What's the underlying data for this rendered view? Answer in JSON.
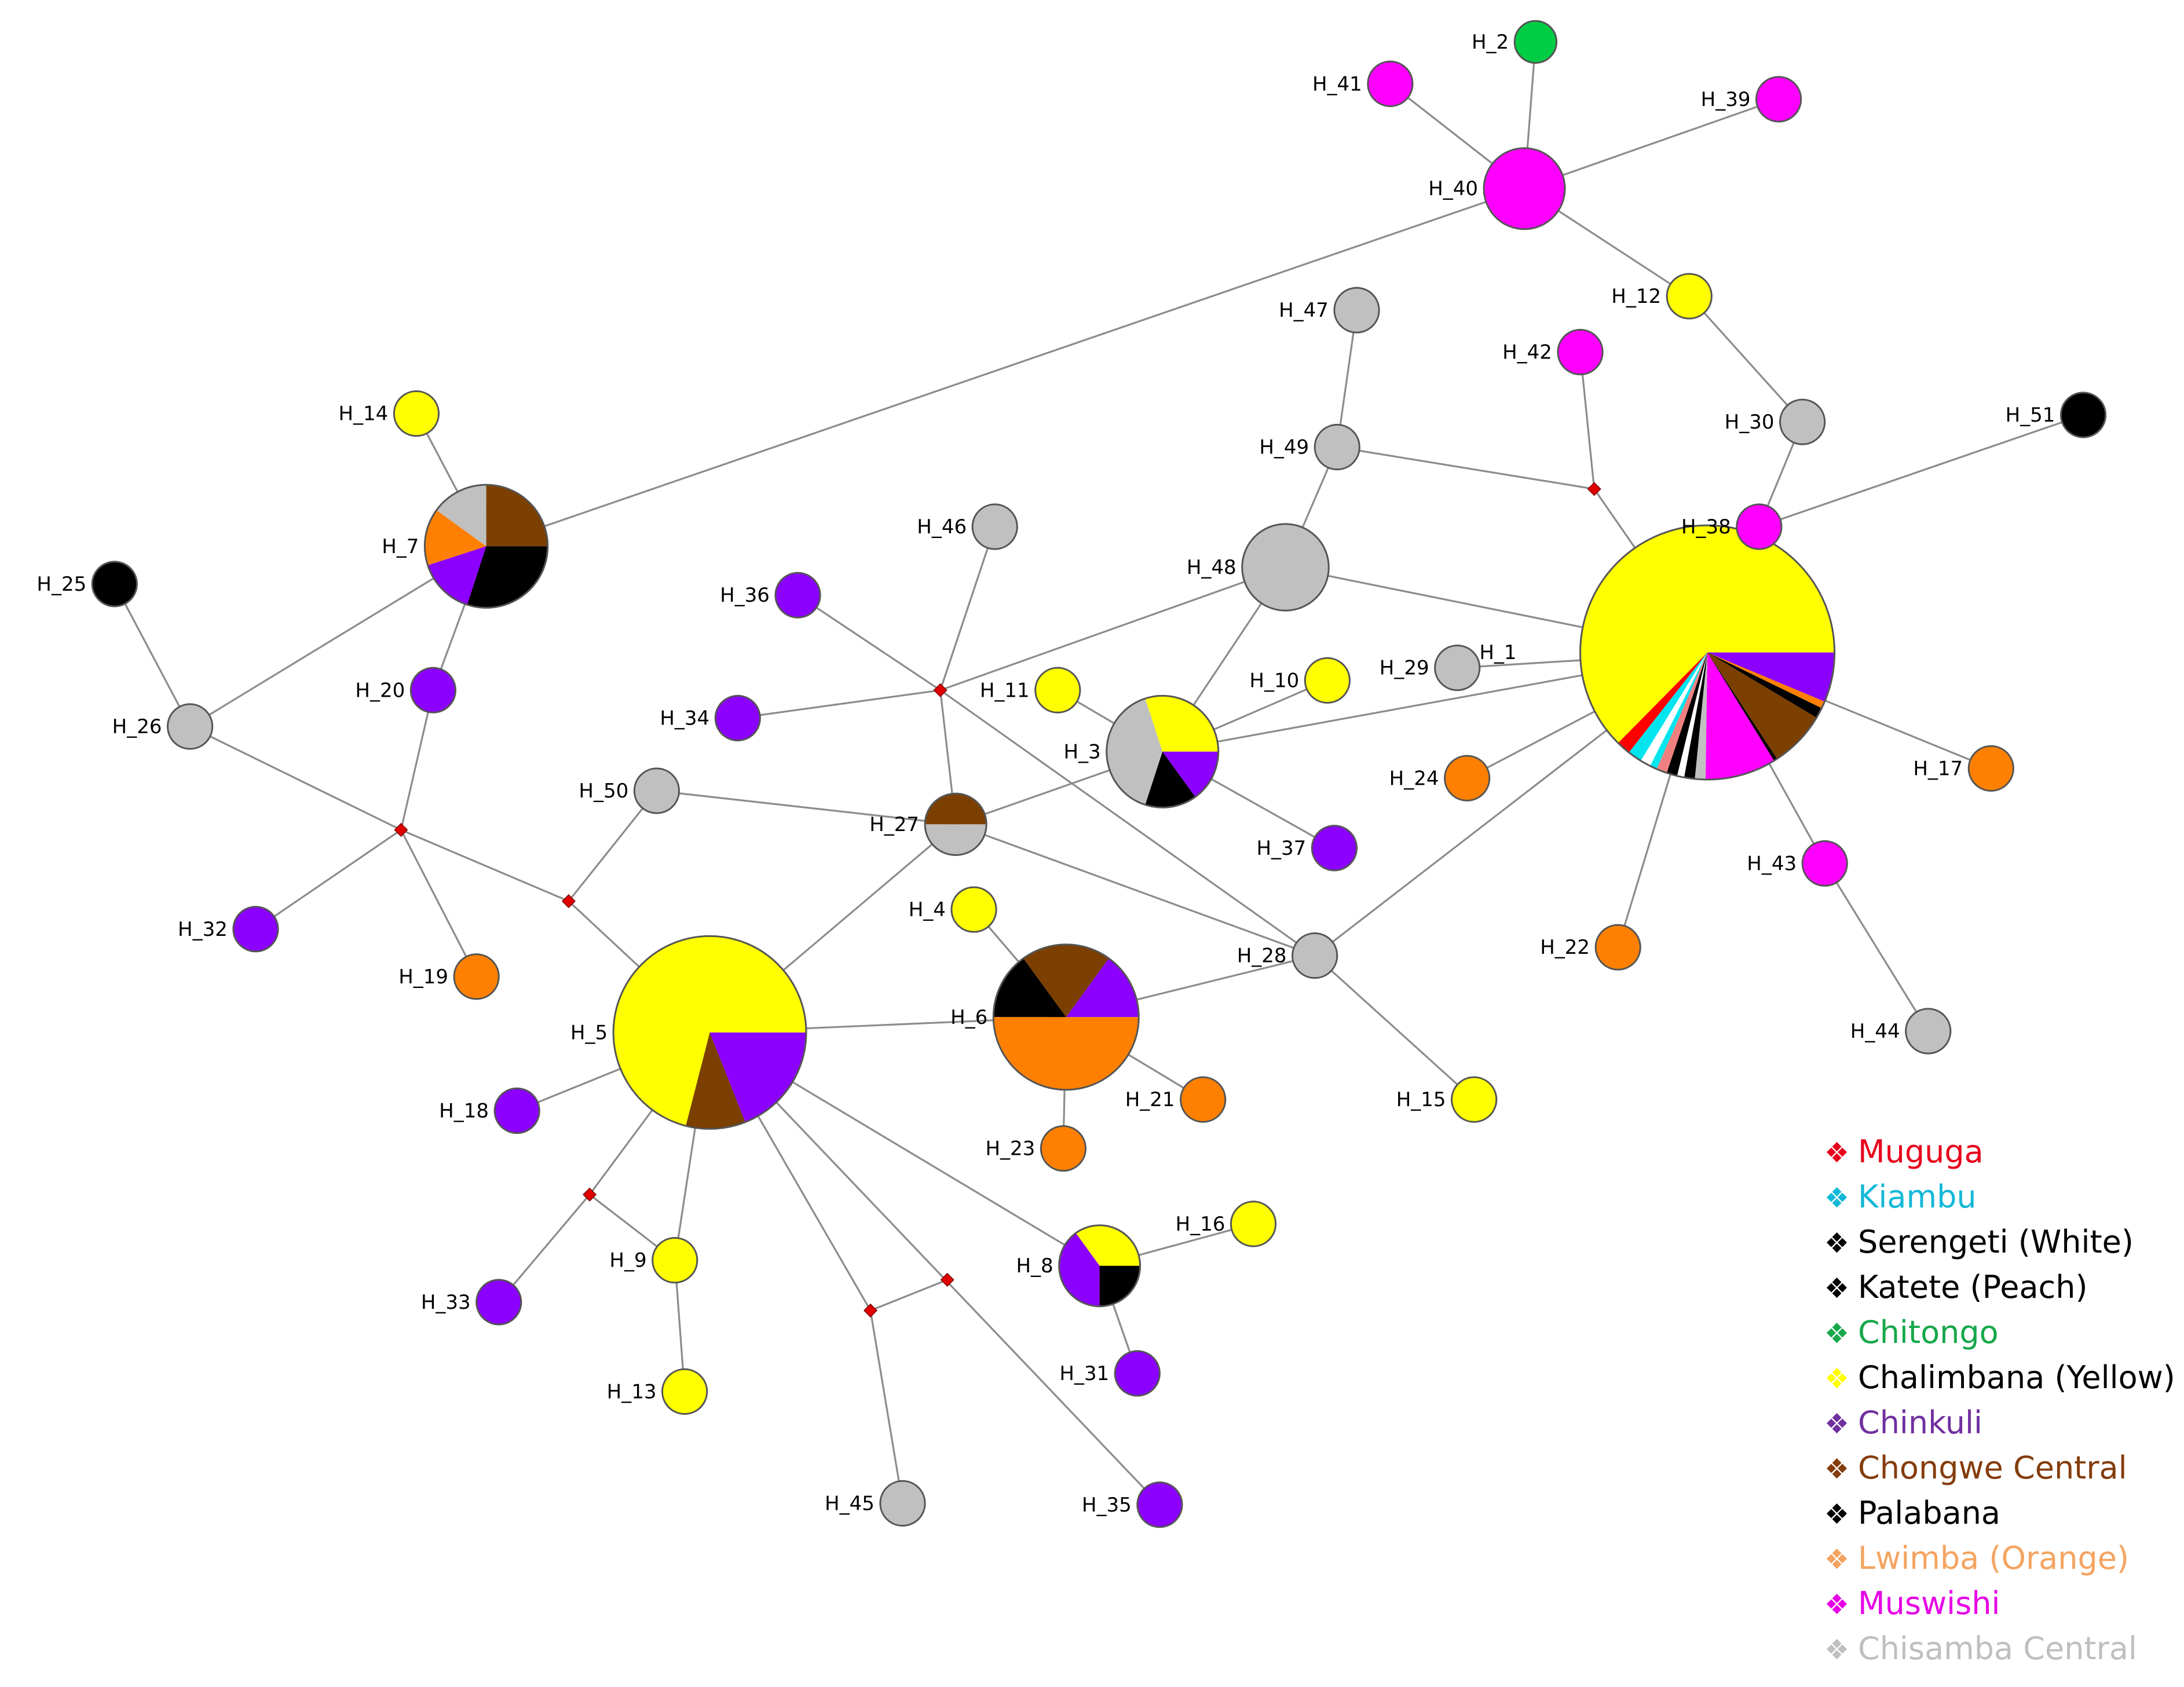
{
  "nodes": [
    {
      "id": "H_1",
      "label": "H_1",
      "slices": [
        [
          "#ffff00",
          0.695
        ],
        [
          "#ff0000",
          0.02
        ],
        [
          "#00e5ee",
          0.02
        ],
        [
          "#ffffff",
          0.015
        ],
        [
          "#00e5ee",
          0.01
        ],
        [
          "#f08080",
          0.015
        ],
        [
          "#000000",
          0.015
        ],
        [
          "#ffffff",
          0.01
        ],
        [
          "#000000",
          0.015
        ],
        [
          "#c0c0c0",
          0.015
        ],
        [
          "#ff00ff",
          0.1
        ],
        [
          "#000000",
          0.005
        ],
        [
          "#7b3f00",
          0.08
        ],
        [
          "#000000",
          0.015
        ],
        [
          "#ff8000",
          0.01
        ],
        [
          "#8b00ff",
          0.07
        ]
      ]
    },
    {
      "id": "H_2",
      "label": "H_2",
      "slices": [
        [
          "#00cc44",
          1
        ]
      ]
    },
    {
      "id": "H_3",
      "label": "H_3",
      "slices": [
        [
          "#ffff00",
          0.3
        ],
        [
          "#c0c0c0",
          0.4
        ],
        [
          "#000000",
          0.15
        ],
        [
          "#8b00ff",
          0.15
        ]
      ]
    },
    {
      "id": "H_4",
      "label": "H_4",
      "slices": [
        [
          "#ffff00",
          1
        ]
      ]
    },
    {
      "id": "H_5",
      "label": "H_5",
      "slices": [
        [
          "#ffff00",
          0.71
        ],
        [
          "#7b3f00",
          0.1
        ],
        [
          "#8b00ff",
          0.19
        ]
      ]
    },
    {
      "id": "H_6",
      "label": "H_6",
      "slices": [
        [
          "#8b00ff",
          0.15
        ],
        [
          "#7b3f00",
          0.2
        ],
        [
          "#000000",
          0.15
        ],
        [
          "#ff8000",
          0.5
        ]
      ]
    },
    {
      "id": "H_7",
      "label": "H_7",
      "slices": [
        [
          "#7b3f00",
          0.25
        ],
        [
          "#c0c0c0",
          0.15
        ],
        [
          "#ff8000",
          0.15
        ],
        [
          "#8b00ff",
          0.15
        ],
        [
          "#000000",
          0.3
        ]
      ]
    },
    {
      "id": "H_8",
      "label": "H_8",
      "slices": [
        [
          "#ffff00",
          0.35
        ],
        [
          "#8b00ff",
          0.4
        ],
        [
          "#000000",
          0.25
        ]
      ]
    },
    {
      "id": "H_9",
      "label": "H_9",
      "slices": [
        [
          "#ffff00",
          1
        ]
      ]
    },
    {
      "id": "H_10",
      "label": "H_10",
      "slices": [
        [
          "#ffff00",
          1
        ]
      ]
    },
    {
      "id": "H_11",
      "label": "H_11",
      "slices": [
        [
          "#ffff00",
          1
        ]
      ]
    },
    {
      "id": "H_12",
      "label": "H_12",
      "slices": [
        [
          "#ffff00",
          1
        ]
      ]
    },
    {
      "id": "H_13",
      "label": "H_13",
      "slices": [
        [
          "#ffff00",
          1
        ]
      ]
    },
    {
      "id": "H_14",
      "label": "H_14",
      "slices": [
        [
          "#ffff00",
          1
        ]
      ]
    },
    {
      "id": "H_15",
      "label": "H_15",
      "slices": [
        [
          "#ffff00",
          1
        ]
      ]
    },
    {
      "id": "H_16",
      "label": "H_16",
      "slices": [
        [
          "#ffff00",
          1
        ]
      ]
    },
    {
      "id": "H_17",
      "label": "H_17",
      "slices": [
        [
          "#ff8000",
          1
        ]
      ]
    },
    {
      "id": "H_18",
      "label": "H_18",
      "slices": [
        [
          "#8b00ff",
          1
        ]
      ]
    },
    {
      "id": "H_19",
      "label": "H_19",
      "slices": [
        [
          "#ff8000",
          1
        ]
      ]
    },
    {
      "id": "H_20",
      "label": "H_20",
      "slices": [
        [
          "#8b00ff",
          1
        ]
      ]
    },
    {
      "id": "H_21",
      "label": "H_21",
      "slices": [
        [
          "#ff8000",
          1
        ]
      ]
    },
    {
      "id": "H_22",
      "label": "H_22",
      "slices": [
        [
          "#ff8000",
          1
        ]
      ]
    },
    {
      "id": "H_23",
      "label": "H_23",
      "slices": [
        [
          "#ff8000",
          1
        ]
      ]
    },
    {
      "id": "H_24",
      "label": "H_24",
      "slices": [
        [
          "#ff8000",
          1
        ]
      ]
    },
    {
      "id": "H_25",
      "label": "H_25",
      "slices": [
        [
          "#000000",
          1
        ]
      ]
    },
    {
      "id": "H_26",
      "label": "H_26",
      "slices": [
        [
          "#c0c0c0",
          1
        ]
      ]
    },
    {
      "id": "H_27",
      "label": "H_27",
      "slices": [
        [
          "#7b3f00",
          0.5
        ],
        [
          "#c0c0c0",
          0.5
        ]
      ]
    },
    {
      "id": "H_28",
      "label": "H_28",
      "slices": [
        [
          "#c0c0c0",
          1
        ]
      ]
    },
    {
      "id": "H_29",
      "label": "H_29",
      "slices": [
        [
          "#c0c0c0",
          1
        ]
      ]
    },
    {
      "id": "H_30",
      "label": "H_30",
      "slices": [
        [
          "#c0c0c0",
          1
        ]
      ]
    },
    {
      "id": "H_31",
      "label": "H_31",
      "slices": [
        [
          "#8b00ff",
          1
        ]
      ]
    },
    {
      "id": "H_32",
      "label": "H_32",
      "slices": [
        [
          "#8b00ff",
          1
        ]
      ]
    },
    {
      "id": "H_33",
      "label": "H_33",
      "slices": [
        [
          "#8b00ff",
          1
        ]
      ]
    },
    {
      "id": "H_34",
      "label": "H_34",
      "slices": [
        [
          "#8b00ff",
          1
        ]
      ]
    },
    {
      "id": "H_35",
      "label": "H_35",
      "slices": [
        [
          "#8b00ff",
          1
        ]
      ]
    },
    {
      "id": "H_36",
      "label": "H_36",
      "slices": [
        [
          "#8b00ff",
          1
        ]
      ]
    },
    {
      "id": "H_37",
      "label": "H_37",
      "slices": [
        [
          "#8b00ff",
          1
        ]
      ]
    },
    {
      "id": "H_38",
      "label": "H_38",
      "slices": [
        [
          "#ff00ff",
          1
        ]
      ]
    },
    {
      "id": "H_39",
      "label": "H_39",
      "slices": [
        [
          "#ff00ff",
          1
        ]
      ]
    },
    {
      "id": "H_40",
      "label": "H_40",
      "slices": [
        [
          "#ff00ff",
          1
        ]
      ]
    },
    {
      "id": "H_41",
      "label": "H_41",
      "slices": [
        [
          "#ff00ff",
          1
        ]
      ]
    },
    {
      "id": "H_42",
      "label": "H_42",
      "slices": [
        [
          "#ff00ff",
          1
        ]
      ]
    },
    {
      "id": "H_43",
      "label": "H_43",
      "slices": [
        [
          "#ff00ff",
          1
        ]
      ]
    },
    {
      "id": "H_44",
      "label": "H_44",
      "slices": [
        [
          "#c0c0c0",
          1
        ]
      ]
    },
    {
      "id": "H_45",
      "label": "H_45",
      "slices": [
        [
          "#c0c0c0",
          1
        ]
      ]
    },
    {
      "id": "H_46",
      "label": "H_46",
      "slices": [
        [
          "#c0c0c0",
          1
        ]
      ]
    },
    {
      "id": "H_47",
      "label": "H_47",
      "slices": [
        [
          "#c0c0c0",
          1
        ]
      ]
    },
    {
      "id": "H_48",
      "label": "H_48",
      "slices": [
        [
          "#c0c0c0",
          1
        ]
      ]
    },
    {
      "id": "H_49",
      "label": "H_49",
      "slices": [
        [
          "#c0c0c0",
          1
        ]
      ]
    },
    {
      "id": "H_50",
      "label": "H_50",
      "slices": [
        [
          "#c0c0c0",
          1
        ]
      ]
    },
    {
      "id": "H_51",
      "label": "H_51",
      "slices": [
        [
          "#000000",
          1
        ]
      ]
    }
  ],
  "median_vectors": [
    "mv1",
    "mv2",
    "mv3",
    "mv4",
    "mv5",
    "mv6",
    "mv7"
  ],
  "edges": [
    [
      "H_40",
      "H_2"
    ],
    [
      "H_40",
      "H_41"
    ],
    [
      "H_40",
      "H_39"
    ],
    [
      "H_40",
      "H_12"
    ],
    [
      "H_40",
      "H_7"
    ],
    [
      "H_12",
      "H_30"
    ],
    [
      "H_30",
      "H_38"
    ],
    [
      "H_38",
      "H_1"
    ],
    [
      "H_38",
      "H_51"
    ],
    [
      "H_47",
      "H_49"
    ],
    [
      "H_49",
      "H_48"
    ],
    [
      "H_49",
      "mv1"
    ],
    [
      "H_42",
      "mv1"
    ],
    [
      "mv1",
      "H_1"
    ],
    [
      "H_48",
      "H_1"
    ],
    [
      "H_48",
      "H_3"
    ],
    [
      "H_48",
      "mv2"
    ],
    [
      "H_46",
      "mv2"
    ],
    [
      "H_36",
      "mv2"
    ],
    [
      "H_34",
      "mv2"
    ],
    [
      "mv2",
      "H_27"
    ],
    [
      "mv2",
      "H_28"
    ],
    [
      "H_1",
      "H_29"
    ],
    [
      "H_1",
      "H_3"
    ],
    [
      "H_1",
      "H_24"
    ],
    [
      "H_1",
      "H_28"
    ],
    [
      "H_1",
      "H_22"
    ],
    [
      "H_1",
      "H_43"
    ],
    [
      "H_1",
      "H_17"
    ],
    [
      "H_43",
      "H_44"
    ],
    [
      "H_3",
      "H_10"
    ],
    [
      "H_3",
      "H_11"
    ],
    [
      "H_3",
      "H_37"
    ],
    [
      "H_3",
      "H_27"
    ],
    [
      "H_27",
      "H_50"
    ],
    [
      "H_27",
      "H_28"
    ],
    [
      "H_27",
      "H_5"
    ],
    [
      "H_28",
      "H_6"
    ],
    [
      "H_28",
      "H_15"
    ],
    [
      "H_6",
      "H_4"
    ],
    [
      "H_6",
      "H_21"
    ],
    [
      "H_6",
      "H_23"
    ],
    [
      "H_6",
      "H_5"
    ],
    [
      "H_7",
      "H_14"
    ],
    [
      "H_7",
      "H_26"
    ],
    [
      "H_7",
      "H_20"
    ],
    [
      "H_26",
      "H_25"
    ],
    [
      "H_26",
      "mv3"
    ],
    [
      "H_20",
      "mv3"
    ],
    [
      "mv3",
      "H_32"
    ],
    [
      "mv3",
      "H_19"
    ],
    [
      "mv3",
      "mv4"
    ],
    [
      "mv4",
      "H_50"
    ],
    [
      "mv4",
      "H_5"
    ],
    [
      "H_5",
      "H_18"
    ],
    [
      "H_5",
      "mv5"
    ],
    [
      "H_5",
      "H_9"
    ],
    [
      "H_5",
      "mv7"
    ],
    [
      "H_5",
      "H_8"
    ],
    [
      "H_5",
      "H_35"
    ],
    [
      "mv5",
      "H_33"
    ],
    [
      "mv5",
      "H_9"
    ],
    [
      "H_9",
      "H_13"
    ],
    [
      "mv7",
      "mv6"
    ],
    [
      "mv7",
      "H_45"
    ],
    [
      "H_8",
      "H_16"
    ],
    [
      "H_8",
      "H_31"
    ]
  ],
  "legend": [
    {
      "label": "Muguga",
      "color": "#e8001c"
    },
    {
      "label": "Kiambu",
      "color": "#12b8d8"
    },
    {
      "label": "Serengeti (White)",
      "color": "#000000"
    },
    {
      "label": "Katete (Peach)",
      "color": "#000000"
    },
    {
      "label": "Chitongo",
      "color": "#16a84a"
    },
    {
      "label": "Chalimbana (Yellow)",
      "color": "#000000"
    },
    {
      "label": "Chinkuli",
      "color": "#7030a0"
    },
    {
      "label": "Chongwe Central",
      "color": "#843c0c"
    },
    {
      "label": "Palabana",
      "color": "#000000"
    },
    {
      "label": "Lwimba (Orange)",
      "color": "#f4a460"
    },
    {
      "label": "Muswishi",
      "color": "#e600e6"
    },
    {
      "label": "Chisamba Central",
      "color": "#bfbfbf"
    }
  ],
  "legend_bullet_colors": [
    "#e8001c",
    "#12b8d8",
    "#000000",
    "#000000",
    "#16a84a",
    "#ffff00",
    "#7030a0",
    "#843c0c",
    "#000000",
    "#f4a460",
    "#e600e6",
    "#bfbfbf"
  ],
  "legend_bullet": "❖"
}
